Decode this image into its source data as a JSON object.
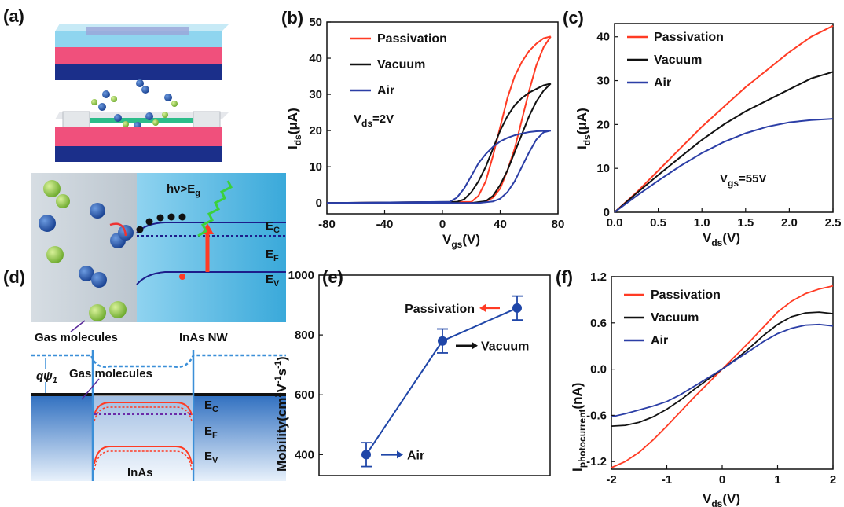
{
  "panel_labels": [
    "(a)",
    "(b)",
    "(c)",
    "(d)",
    "(e)",
    "(f)"
  ],
  "colors": {
    "passivation": "#ff3b24",
    "vacuum": "#111111",
    "air": "#2b3ea6",
    "marker": "#1f46a8",
    "substrate_top": "#f0507c",
    "substrate_bottom": "#1b2f8a",
    "water": "#56bfe6",
    "molecule_green": "#8cc63f",
    "molecule_blue": "#1f4ea6"
  },
  "diagram_a": {
    "hv_label": "hν>E",
    "hv_sub": "g",
    "levels": [
      {
        "main": "E",
        "sub": "C"
      },
      {
        "main": "E",
        "sub": "F"
      },
      {
        "main": "E",
        "sub": "V"
      }
    ],
    "gas_label": "Gas molecules",
    "nw_label": "InAs NW"
  },
  "diagram_d": {
    "psi_label": "qψ",
    "psi_sub": "1",
    "gas_label": "Gas molecules",
    "levels": [
      {
        "main": "E",
        "sub": "C"
      },
      {
        "main": "E",
        "sub": "F"
      },
      {
        "main": "E",
        "sub": "V"
      }
    ],
    "inas_label": "InAs"
  },
  "chart_data": [
    {
      "panel": "(b)",
      "type": "line",
      "xlabel": {
        "main": "V",
        "sub": "gs",
        "tail": "(V)"
      },
      "ylabel": {
        "main": "I",
        "sub": "ds",
        "tail": "(μA)"
      },
      "xlim": [
        -80,
        80
      ],
      "ylim": [
        -3,
        50
      ],
      "xticks": [
        "-80",
        "-40",
        "0",
        "40",
        "80"
      ],
      "yticks": [
        "0",
        "10",
        "20",
        "30",
        "40",
        "50"
      ],
      "legend": [
        "Passivation",
        "Vacuum",
        "Air"
      ],
      "annotation": {
        "main": "V",
        "sub": "ds",
        "tail": "=2V"
      },
      "series": [
        {
          "name": "Passivation",
          "forward": [
            [
              -80,
              0
            ],
            [
              20,
              0.3
            ],
            [
              25,
              2
            ],
            [
              30,
              6
            ],
            [
              35,
              13
            ],
            [
              40,
              21
            ],
            [
              45,
              29
            ],
            [
              50,
              35
            ],
            [
              55,
              39
            ],
            [
              60,
              42
            ],
            [
              65,
              44
            ],
            [
              70,
              45.5
            ],
            [
              75,
              46
            ]
          ],
          "reverse": [
            [
              75,
              46
            ],
            [
              70,
              43
            ],
            [
              65,
              38
            ],
            [
              60,
              31
            ],
            [
              55,
              23
            ],
            [
              50,
              15
            ],
            [
              45,
              9
            ],
            [
              40,
              4
            ],
            [
              35,
              1.5
            ],
            [
              30,
              0.4
            ],
            [
              20,
              0
            ],
            [
              -80,
              0
            ]
          ]
        },
        {
          "name": "Vacuum",
          "forward": [
            [
              -80,
              0
            ],
            [
              10,
              0.3
            ],
            [
              15,
              1
            ],
            [
              20,
              3
            ],
            [
              25,
              6
            ],
            [
              30,
              10
            ],
            [
              35,
              15
            ],
            [
              40,
              20
            ],
            [
              45,
              24
            ],
            [
              50,
              27
            ],
            [
              55,
              29
            ],
            [
              60,
              30.5
            ],
            [
              65,
              31.5
            ],
            [
              70,
              32.5
            ],
            [
              75,
              33
            ]
          ],
          "reverse": [
            [
              75,
              33
            ],
            [
              70,
              31
            ],
            [
              65,
              28
            ],
            [
              60,
              24
            ],
            [
              55,
              19
            ],
            [
              50,
              14
            ],
            [
              45,
              9
            ],
            [
              40,
              5
            ],
            [
              35,
              2
            ],
            [
              30,
              0.5
            ],
            [
              20,
              0
            ],
            [
              -80,
              0
            ]
          ]
        },
        {
          "name": "Air",
          "forward": [
            [
              -80,
              0
            ],
            [
              5,
              0.3
            ],
            [
              10,
              1.5
            ],
            [
              15,
              4
            ],
            [
              20,
              7.5
            ],
            [
              25,
              11
            ],
            [
              30,
              13.5
            ],
            [
              35,
              15.5
            ],
            [
              40,
              17
            ],
            [
              45,
              18
            ],
            [
              50,
              18.7
            ],
            [
              55,
              19.2
            ],
            [
              60,
              19.6
            ],
            [
              65,
              19.8
            ],
            [
              70,
              19.9
            ],
            [
              75,
              20
            ]
          ],
          "reverse": [
            [
              75,
              20
            ],
            [
              70,
              19.5
            ],
            [
              65,
              17.5
            ],
            [
              60,
              14
            ],
            [
              55,
              10
            ],
            [
              50,
              6
            ],
            [
              45,
              3
            ],
            [
              40,
              1.2
            ],
            [
              35,
              0.4
            ],
            [
              25,
              0
            ],
            [
              -80,
              0
            ]
          ]
        }
      ]
    },
    {
      "panel": "(c)",
      "type": "line",
      "xlabel": {
        "main": "V",
        "sub": "ds",
        "tail": "(V)"
      },
      "ylabel": {
        "main": "I",
        "sub": "ds",
        "tail": "(μA)"
      },
      "xlim": [
        0,
        2.5
      ],
      "ylim": [
        0,
        43
      ],
      "xticks": [
        "0.0",
        "0.5",
        "1.0",
        "1.5",
        "2.0",
        "2.5"
      ],
      "yticks": [
        "0",
        "10",
        "20",
        "30",
        "40"
      ],
      "legend": [
        "Passivation",
        "Vacuum",
        "Air"
      ],
      "annotation": {
        "main": "V",
        "sub": "gs",
        "tail": "=55V"
      },
      "series": [
        {
          "name": "Passivation",
          "points": [
            [
              0,
              0
            ],
            [
              0.25,
              4.5
            ],
            [
              0.5,
              9.5
            ],
            [
              0.75,
              14.5
            ],
            [
              1.0,
              19.5
            ],
            [
              1.25,
              24
            ],
            [
              1.5,
              28.5
            ],
            [
              1.75,
              32.5
            ],
            [
              2.0,
              36.5
            ],
            [
              2.25,
              40
            ],
            [
              2.5,
              42.5
            ]
          ]
        },
        {
          "name": "Vacuum",
          "points": [
            [
              0,
              0
            ],
            [
              0.25,
              4.3
            ],
            [
              0.5,
              8.5
            ],
            [
              0.75,
              12.5
            ],
            [
              1.0,
              16.5
            ],
            [
              1.25,
              20
            ],
            [
              1.5,
              23
            ],
            [
              1.75,
              25.5
            ],
            [
              2.0,
              28
            ],
            [
              2.25,
              30.5
            ],
            [
              2.5,
              32
            ]
          ]
        },
        {
          "name": "Air",
          "points": [
            [
              0,
              0
            ],
            [
              0.25,
              3.7
            ],
            [
              0.5,
              7.2
            ],
            [
              0.75,
              10.5
            ],
            [
              1.0,
              13.5
            ],
            [
              1.25,
              16
            ],
            [
              1.5,
              18
            ],
            [
              1.75,
              19.5
            ],
            [
              2.0,
              20.5
            ],
            [
              2.25,
              21
            ],
            [
              2.5,
              21.3
            ]
          ]
        }
      ]
    },
    {
      "panel": "(e)",
      "type": "line",
      "ylabel": {
        "main": "Mobility(cm",
        "sup1": "2",
        "mid": "V",
        "sup2": "-1",
        "mid2": "s",
        "sup3": "-1",
        "tail": ")"
      },
      "ylim": [
        330,
        1000
      ],
      "yticks": [
        "400",
        "600",
        "800",
        "1000"
      ],
      "categories": [
        "Air",
        "Vacuum",
        "Passivation"
      ],
      "values": [
        400,
        780,
        890
      ],
      "errors": [
        40,
        40,
        40
      ]
    },
    {
      "panel": "(f)",
      "type": "line",
      "xlabel": {
        "main": "V",
        "sub": "ds",
        "tail": "(V)"
      },
      "ylabel": {
        "main": "I",
        "sub": "photocurrent",
        "tail": "(nA)"
      },
      "xlim": [
        -2,
        2
      ],
      "ylim": [
        -1.3,
        1.2
      ],
      "xticks": [
        "-2",
        "-1",
        "0",
        "1",
        "2"
      ],
      "yticks": [
        "-1.2",
        "-0.6",
        "0.0",
        "0.6",
        "1.2"
      ],
      "legend": [
        "Passivation",
        "Vacuum",
        "Air"
      ],
      "series": [
        {
          "name": "Passivation",
          "points": [
            [
              -2,
              -1.28
            ],
            [
              -1.75,
              -1.2
            ],
            [
              -1.5,
              -1.08
            ],
            [
              -1.25,
              -0.92
            ],
            [
              -1.0,
              -0.74
            ],
            [
              -0.75,
              -0.55
            ],
            [
              -0.5,
              -0.36
            ],
            [
              -0.25,
              -0.18
            ],
            [
              0,
              0
            ],
            [
              0.25,
              0.18
            ],
            [
              0.5,
              0.36
            ],
            [
              0.75,
              0.55
            ],
            [
              1.0,
              0.74
            ],
            [
              1.25,
              0.88
            ],
            [
              1.5,
              0.98
            ],
            [
              1.75,
              1.04
            ],
            [
              2.0,
              1.08
            ]
          ]
        },
        {
          "name": "Vacuum",
          "points": [
            [
              -2,
              -0.74
            ],
            [
              -1.75,
              -0.73
            ],
            [
              -1.5,
              -0.69
            ],
            [
              -1.25,
              -0.62
            ],
            [
              -1.0,
              -0.52
            ],
            [
              -0.75,
              -0.4
            ],
            [
              -0.5,
              -0.26
            ],
            [
              -0.25,
              -0.13
            ],
            [
              0,
              0
            ],
            [
              0.25,
              0.13
            ],
            [
              0.5,
              0.28
            ],
            [
              0.75,
              0.44
            ],
            [
              1.0,
              0.58
            ],
            [
              1.25,
              0.68
            ],
            [
              1.5,
              0.73
            ],
            [
              1.75,
              0.74
            ],
            [
              2.0,
              0.72
            ]
          ]
        },
        {
          "name": "Air",
          "points": [
            [
              -2,
              -0.62
            ],
            [
              -1.75,
              -0.58
            ],
            [
              -1.5,
              -0.53
            ],
            [
              -1.25,
              -0.48
            ],
            [
              -1.0,
              -0.42
            ],
            [
              -0.75,
              -0.33
            ],
            [
              -0.5,
              -0.22
            ],
            [
              -0.25,
              -0.11
            ],
            [
              0,
              0
            ],
            [
              0.25,
              0.12
            ],
            [
              0.5,
              0.24
            ],
            [
              0.75,
              0.36
            ],
            [
              1.0,
              0.46
            ],
            [
              1.25,
              0.53
            ],
            [
              1.5,
              0.57
            ],
            [
              1.75,
              0.58
            ],
            [
              2.0,
              0.56
            ]
          ]
        }
      ]
    }
  ]
}
